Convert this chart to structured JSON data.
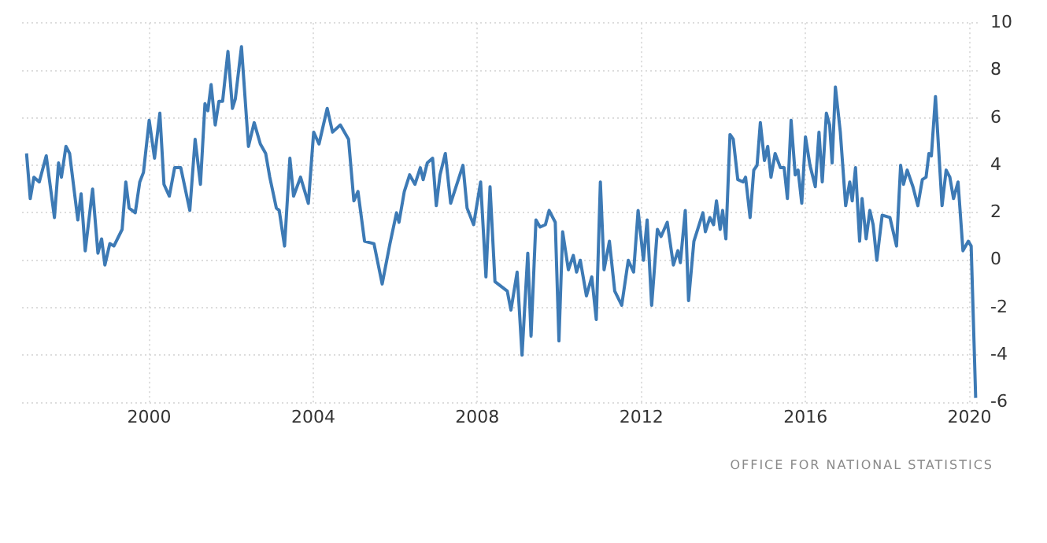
{
  "chart_data": {
    "type": "line",
    "x": [
      1997.01,
      1997.1,
      1997.19,
      1997.32,
      1997.49,
      1997.69,
      1997.79,
      1997.86,
      1997.97,
      1998.06,
      1998.26,
      1998.34,
      1998.44,
      1998.62,
      1998.75,
      1998.84,
      1998.92,
      1999.04,
      1999.14,
      1999.34,
      1999.43,
      1999.51,
      1999.66,
      1999.77,
      1999.86,
      2000.0,
      2000.13,
      2000.26,
      2000.36,
      2000.49,
      2000.62,
      2000.77,
      2000.99,
      2001.12,
      2001.25,
      2001.36,
      2001.43,
      2001.51,
      2001.61,
      2001.7,
      2001.79,
      2001.92,
      2002.03,
      2002.1,
      2002.25,
      2002.42,
      2002.56,
      2002.71,
      2002.84,
      2002.94,
      2003.1,
      2003.17,
      2003.3,
      2003.43,
      2003.52,
      2003.69,
      2003.88,
      2004.01,
      2004.14,
      2004.34,
      2004.47,
      2004.66,
      2004.86,
      2004.99,
      2005.09,
      2005.25,
      2005.48,
      2005.68,
      2005.87,
      2006.03,
      2006.09,
      2006.22,
      2006.35,
      2006.48,
      2006.61,
      2006.68,
      2006.78,
      2006.91,
      2007.0,
      2007.09,
      2007.22,
      2007.35,
      2007.65,
      2007.75,
      2007.91,
      2008.08,
      2008.21,
      2008.31,
      2008.43,
      2008.73,
      2008.82,
      2008.97,
      2009.09,
      2009.23,
      2009.31,
      2009.43,
      2009.53,
      2009.66,
      2009.75,
      2009.9,
      2009.99,
      2010.08,
      2010.22,
      2010.34,
      2010.42,
      2010.51,
      2010.66,
      2010.79,
      2010.9,
      2011.0,
      2011.09,
      2011.22,
      2011.35,
      2011.52,
      2011.68,
      2011.81,
      2011.92,
      2012.05,
      2012.14,
      2012.25,
      2012.39,
      2012.48,
      2012.63,
      2012.78,
      2012.89,
      2012.95,
      2013.07,
      2013.15,
      2013.28,
      2013.5,
      2013.56,
      2013.67,
      2013.76,
      2013.83,
      2013.92,
      2013.98,
      2014.06,
      2014.16,
      2014.24,
      2014.35,
      2014.48,
      2014.54,
      2014.65,
      2014.74,
      2014.82,
      2014.9,
      2015.0,
      2015.08,
      2015.16,
      2015.26,
      2015.39,
      2015.48,
      2015.56,
      2015.65,
      2015.75,
      2015.82,
      2015.91,
      2016.0,
      2016.11,
      2016.24,
      2016.33,
      2016.41,
      2016.51,
      2016.59,
      2016.65,
      2016.73,
      2016.85,
      2016.98,
      2017.08,
      2017.14,
      2017.22,
      2017.32,
      2017.38,
      2017.48,
      2017.57,
      2017.65,
      2017.74,
      2017.87,
      2018.06,
      2018.22,
      2018.32,
      2018.39,
      2018.48,
      2018.62,
      2018.74,
      2018.85,
      2018.94,
      2019.01,
      2019.07,
      2019.17,
      2019.33,
      2019.43,
      2019.52,
      2019.61,
      2019.72,
      2019.84,
      2019.97,
      2020.04,
      2020.15
    ],
    "series": [
      {
        "color": "#3d7ab5",
        "values": [
          4.5,
          2.6,
          3.5,
          3.3,
          4.4,
          1.8,
          4.1,
          3.5,
          4.8,
          4.5,
          1.7,
          2.8,
          0.4,
          3.0,
          0.3,
          0.9,
          -0.2,
          0.7,
          0.6,
          1.3,
          3.3,
          2.2,
          2.0,
          3.3,
          3.7,
          5.9,
          4.3,
          6.2,
          3.2,
          2.7,
          3.9,
          3.9,
          2.1,
          5.1,
          3.2,
          6.6,
          6.3,
          7.4,
          5.7,
          6.7,
          6.7,
          8.8,
          6.4,
          6.8,
          9.0,
          4.8,
          5.8,
          4.9,
          4.5,
          3.5,
          2.2,
          2.1,
          0.6,
          4.3,
          2.7,
          3.5,
          2.4,
          5.4,
          4.9,
          6.4,
          5.4,
          5.7,
          5.1,
          2.5,
          2.9,
          0.8,
          0.7,
          -1.0,
          0.7,
          2.0,
          1.6,
          2.9,
          3.6,
          3.2,
          3.9,
          3.4,
          4.1,
          4.3,
          2.3,
          3.6,
          4.5,
          2.4,
          4.0,
          2.2,
          1.5,
          3.3,
          -0.7,
          3.1,
          -0.9,
          -1.3,
          -2.1,
          -0.5,
          -4.0,
          0.3,
          -3.2,
          1.7,
          1.4,
          1.5,
          2.1,
          1.6,
          -3.4,
          1.2,
          -0.4,
          0.2,
          -0.5,
          0.0,
          -1.5,
          -0.7,
          -2.5,
          3.3,
          -0.4,
          0.8,
          -1.3,
          -1.9,
          0.0,
          -0.5,
          2.1,
          0.0,
          1.7,
          -1.9,
          1.3,
          1.0,
          1.6,
          -0.2,
          0.4,
          -0.1,
          2.1,
          -1.7,
          0.8,
          2.0,
          1.2,
          1.8,
          1.5,
          2.5,
          1.3,
          2.1,
          0.9,
          5.3,
          5.1,
          3.4,
          3.3,
          3.5,
          1.8,
          3.8,
          4.0,
          5.8,
          4.2,
          4.8,
          3.5,
          4.5,
          3.9,
          3.9,
          2.6,
          5.9,
          3.6,
          3.8,
          2.4,
          5.2,
          4.0,
          3.1,
          5.4,
          3.3,
          6.2,
          5.7,
          4.1,
          7.3,
          5.4,
          2.3,
          3.3,
          2.5,
          3.9,
          0.8,
          2.6,
          0.9,
          2.1,
          1.5,
          0.0,
          1.9,
          1.8,
          0.6,
          4.0,
          3.2,
          3.8,
          3.1,
          2.3,
          3.4,
          3.5,
          4.5,
          4.4,
          6.9,
          2.3,
          3.8,
          3.5,
          2.6,
          3.3,
          0.4,
          0.8,
          0.6,
          -5.8
        ]
      }
    ],
    "xlim": [
      1996.9,
      2020.2
    ],
    "xticks": [
      2000,
      2004,
      2008,
      2012,
      2016,
      2020
    ],
    "ylim": [
      -6,
      10
    ],
    "yticks": [
      -6,
      -4,
      -2,
      0,
      2,
      4,
      6,
      8,
      10
    ],
    "grid": true,
    "legend": false,
    "marker": "none",
    "line_style": "solid",
    "annotations": [
      "OFFICE FOR NATIONAL STATISTICS"
    ]
  }
}
